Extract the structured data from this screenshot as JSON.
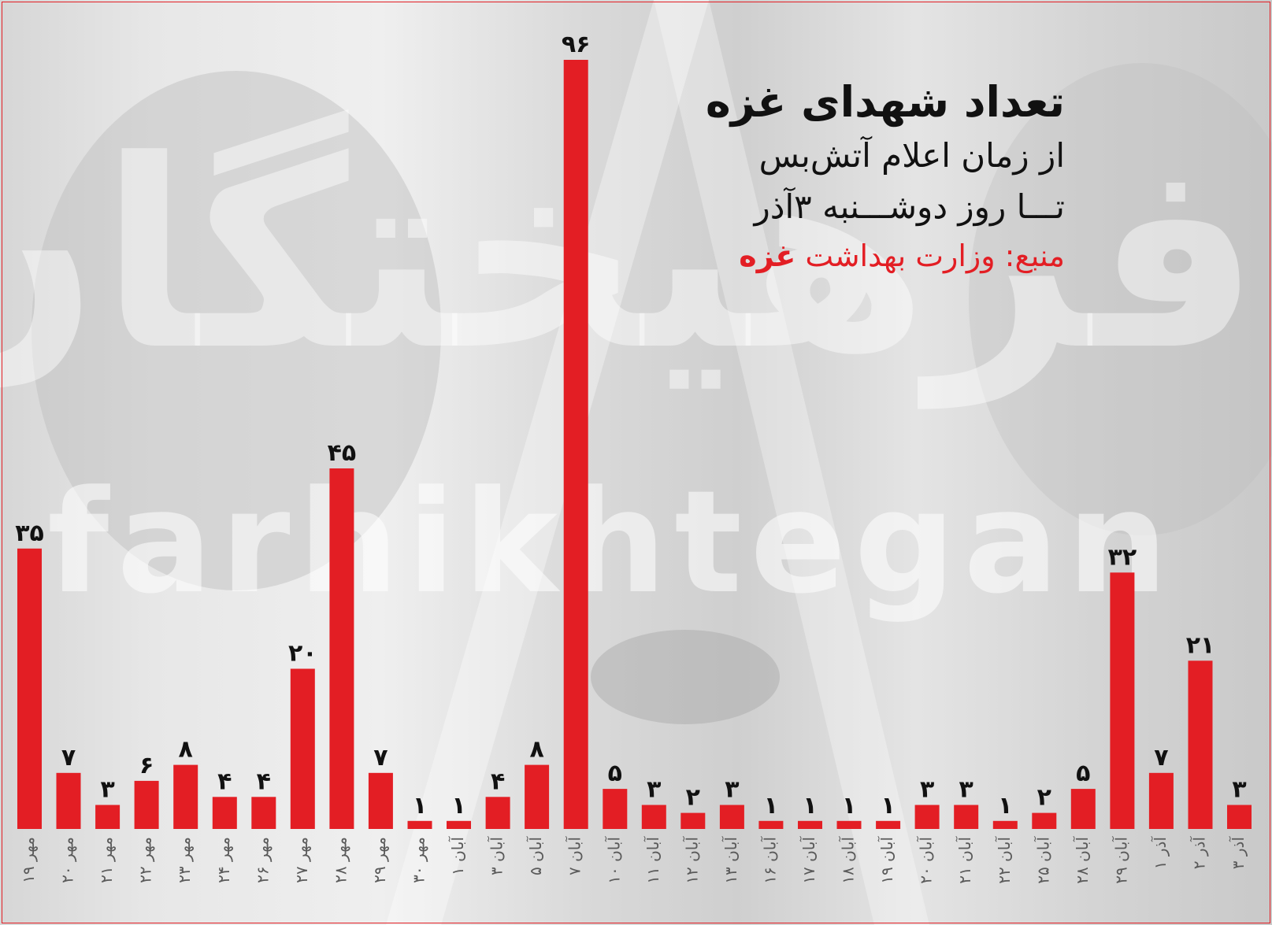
{
  "title": "تعداد شهدای غزه",
  "subtitle_lines": [
    "از زمان اعلام آتش‌بس",
    "تـــا روز دوشـــنبه ۳آذر"
  ],
  "source": {
    "label": "منبع: وزارت بهداشت",
    "emphasis": "غزه"
  },
  "watermark": {
    "latin": "farhikhtegan",
    "persian": "فرهیختگان"
  },
  "colors": {
    "bar": "#e31e24",
    "text": "#111111",
    "tick": "#5a5a5a",
    "source": "#e31e24"
  },
  "chart_data": {
    "type": "bar",
    "direction": "left-to-right chronological",
    "categories": [
      "۱۹ مهر",
      "۲۰ مهر",
      "۲۱ مهر",
      "۲۲ مهر",
      "۲۳ مهر",
      "۲۴ مهر",
      "۲۶ مهر",
      "۲۷ مهر",
      "۲۸ مهر",
      "۲۹ مهر",
      "۳۰ مهر",
      "۱ آبان",
      "۳ آبان",
      "۵ آبان",
      "۷ آبان",
      "۱۰ آبان",
      "۱۱ آبان",
      "۱۲ آبان",
      "۱۳ آبان",
      "۱۶ آبان",
      "۱۷ آبان",
      "۱۸ آبان",
      "۱۹ آبان",
      "۲۰ آبان",
      "۲۱ آبان",
      "۲۲ آبان",
      "۲۵ آبان",
      "۲۸ آبان",
      "۲۹ آبان",
      "۱ آذر",
      "۲ آذر",
      "۳ آذر"
    ],
    "values": [
      35,
      7,
      3,
      6,
      8,
      4,
      4,
      20,
      45,
      7,
      1,
      1,
      4,
      8,
      96,
      5,
      3,
      2,
      3,
      1,
      1,
      1,
      1,
      3,
      3,
      1,
      2,
      5,
      32,
      7,
      21,
      3
    ],
    "value_labels": [
      "۳۵",
      "۷",
      "۳",
      "۶",
      "۸",
      "۴",
      "۴",
      "۲۰",
      "۴۵",
      "۷",
      "۱",
      "۱",
      "۴",
      "۸",
      "۹۶",
      "۵",
      "۳",
      "۲",
      "۳",
      "۱",
      "۱",
      "۱",
      "۱",
      "۳",
      "۳",
      "۱",
      "۲",
      "۵",
      "۳۲",
      "۷",
      "۲۱",
      "۳"
    ],
    "ylim": [
      0,
      96
    ],
    "grid": false,
    "legend": "none"
  }
}
